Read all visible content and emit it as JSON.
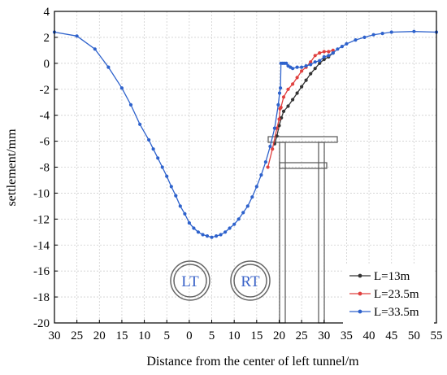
{
  "chart_data": {
    "type": "line",
    "title": "",
    "xlabel": "Distance from the center of left tunnel/m",
    "ylabel": "settlement/mm",
    "xlim": [
      -30,
      55
    ],
    "ylim": [
      -20,
      4
    ],
    "x_ticks": [
      -30,
      -25,
      -20,
      -15,
      -10,
      -5,
      0,
      5,
      10,
      15,
      20,
      25,
      30,
      35,
      40,
      45,
      50,
      55
    ],
    "x_tick_labels": [
      "30",
      "25",
      "20",
      "15",
      "10",
      "5",
      "0",
      "5",
      "10",
      "15",
      "20",
      "25",
      "30",
      "35",
      "40",
      "45",
      "50",
      "55"
    ],
    "y_ticks": [
      -20,
      -18,
      -16,
      -14,
      -12,
      -10,
      -8,
      -6,
      -4,
      -2,
      0,
      2,
      4
    ],
    "y_tick_labels": [
      "-20",
      "-18",
      "-16",
      "-14",
      "-12",
      "-10",
      "-8",
      "-6",
      "-4",
      "-2",
      "0",
      "2",
      "4"
    ],
    "grid": true,
    "legend_position": "bottom-right",
    "series": [
      {
        "name": "L=13m",
        "color": "#333333",
        "points": [
          [
            19.0,
            -6.2
          ],
          [
            19.5,
            -5.6
          ],
          [
            20.0,
            -4.8
          ],
          [
            20.5,
            -4.2
          ],
          [
            21.0,
            -3.7
          ],
          [
            22.0,
            -3.3
          ],
          [
            23.0,
            -2.8
          ],
          [
            24.0,
            -2.3
          ],
          [
            25.0,
            -1.8
          ],
          [
            26.0,
            -1.3
          ],
          [
            27.0,
            -0.8
          ],
          [
            28.0,
            -0.4
          ],
          [
            29.0,
            0.0
          ],
          [
            30.0,
            0.3
          ],
          [
            31.0,
            0.5
          ],
          [
            32.0,
            0.8
          ]
        ]
      },
      {
        "name": "L=23.5m",
        "color": "#e0403f",
        "points": [
          [
            17.5,
            -8.0
          ],
          [
            18.5,
            -6.6
          ],
          [
            19.5,
            -5.0
          ],
          [
            20.0,
            -4.3
          ],
          [
            20.2,
            -3.5
          ],
          [
            20.4,
            -3.4
          ],
          [
            21.0,
            -2.6
          ],
          [
            22.0,
            -2.0
          ],
          [
            23.0,
            -1.6
          ],
          [
            24.0,
            -1.1
          ],
          [
            25.0,
            -0.6
          ],
          [
            26.0,
            -0.3
          ],
          [
            27.0,
            0.1
          ],
          [
            28.0,
            0.6
          ],
          [
            29.0,
            0.8
          ],
          [
            30.0,
            0.9
          ],
          [
            31.0,
            0.9
          ],
          [
            32.0,
            1.0
          ]
        ]
      },
      {
        "name": "L=33.5m",
        "color": "#2e62cc",
        "points": [
          [
            -30,
            2.4
          ],
          [
            -25,
            2.1
          ],
          [
            -21,
            1.1
          ],
          [
            -18,
            -0.3
          ],
          [
            -15,
            -1.9
          ],
          [
            -13,
            -3.2
          ],
          [
            -11,
            -4.7
          ],
          [
            -9,
            -5.9
          ],
          [
            -8,
            -6.6
          ],
          [
            -7,
            -7.3
          ],
          [
            -6,
            -8.0
          ],
          [
            -5,
            -8.7
          ],
          [
            -4,
            -9.5
          ],
          [
            -3,
            -10.2
          ],
          [
            -2,
            -11.0
          ],
          [
            -1,
            -11.6
          ],
          [
            0,
            -12.3
          ],
          [
            1,
            -12.7
          ],
          [
            2,
            -13.0
          ],
          [
            3,
            -13.2
          ],
          [
            4,
            -13.3
          ],
          [
            5,
            -13.4
          ],
          [
            6,
            -13.3
          ],
          [
            7,
            -13.2
          ],
          [
            8,
            -13.0
          ],
          [
            9,
            -12.7
          ],
          [
            10,
            -12.4
          ],
          [
            11,
            -12.0
          ],
          [
            12,
            -11.5
          ],
          [
            13,
            -11.0
          ],
          [
            14,
            -10.3
          ],
          [
            15,
            -9.5
          ],
          [
            16,
            -8.6
          ],
          [
            17,
            -7.6
          ],
          [
            18,
            -6.4
          ],
          [
            19,
            -5.0
          ],
          [
            19.8,
            -3.2
          ],
          [
            20.1,
            -2.3
          ],
          [
            20.3,
            -1.9
          ],
          [
            20.4,
            0.0
          ],
          [
            20.8,
            0.0
          ],
          [
            21.2,
            0.0
          ],
          [
            21.6,
            0.0
          ],
          [
            22.0,
            -0.2
          ],
          [
            22.5,
            -0.3
          ],
          [
            23.0,
            -0.4
          ],
          [
            24.0,
            -0.3
          ],
          [
            25.0,
            -0.3
          ],
          [
            26.0,
            -0.2
          ],
          [
            27.0,
            -0.1
          ],
          [
            28.0,
            0.1
          ],
          [
            29.0,
            0.2
          ],
          [
            30.0,
            0.5
          ],
          [
            31.0,
            0.6
          ],
          [
            32.0,
            0.8
          ],
          [
            33.0,
            1.1
          ],
          [
            34.0,
            1.3
          ],
          [
            35.0,
            1.5
          ],
          [
            37.0,
            1.8
          ],
          [
            39.0,
            2.0
          ],
          [
            41.0,
            2.2
          ],
          [
            43.0,
            2.3
          ],
          [
            45.0,
            2.4
          ],
          [
            50.0,
            2.45
          ],
          [
            55.0,
            2.4
          ]
        ]
      }
    ],
    "annotations": {
      "left_tunnel_label": "LT",
      "right_tunnel_label": "RT"
    }
  }
}
